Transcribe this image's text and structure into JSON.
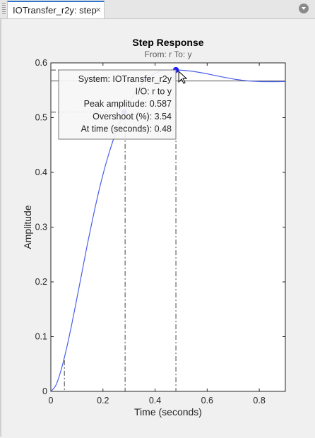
{
  "tab": {
    "label": "IOTransfer_r2y: step",
    "close": "×"
  },
  "chart_data": {
    "type": "line",
    "title": "Step Response",
    "subtitle": "From: r  To: y",
    "xlabel": "Time (seconds)",
    "ylabel": "Amplitude",
    "xlim": [
      0,
      0.9
    ],
    "ylim": [
      0,
      0.6
    ],
    "xticks": [
      0,
      0.2,
      0.4,
      0.6,
      0.8
    ],
    "yticks": [
      0,
      0.1,
      0.2,
      0.3,
      0.4,
      0.5,
      0.6
    ],
    "xtick_labels": [
      "0",
      "0.2",
      "0.4",
      "0.6",
      "0.8"
    ],
    "ytick_labels": [
      "0",
      "0.1",
      "0.2",
      "0.3",
      "0.4",
      "0.5",
      "0.6"
    ],
    "grid": false,
    "series": [
      {
        "color": "#4a5ee8",
        "x": [
          0,
          0.02,
          0.04,
          0.06,
          0.08,
          0.1,
          0.12,
          0.14,
          0.16,
          0.18,
          0.2,
          0.22,
          0.24,
          0.26,
          0.28,
          0.3,
          0.32,
          0.34,
          0.36,
          0.38,
          0.4,
          0.42,
          0.44,
          0.46,
          0.48,
          0.5,
          0.52,
          0.54,
          0.56,
          0.58,
          0.6,
          0.62,
          0.64,
          0.66,
          0.68,
          0.7,
          0.72,
          0.74,
          0.76,
          0.78,
          0.8,
          0.82,
          0.84,
          0.86,
          0.88,
          0.9
        ],
        "y": [
          0,
          0.012,
          0.04,
          0.078,
          0.122,
          0.17,
          0.219,
          0.268,
          0.314,
          0.357,
          0.396,
          0.43,
          0.46,
          0.486,
          0.508,
          0.527,
          0.543,
          0.556,
          0.567,
          0.575,
          0.581,
          0.585,
          0.5865,
          0.587,
          0.587,
          0.5866,
          0.5858,
          0.5848,
          0.5834,
          0.5818,
          0.58,
          0.578,
          0.576,
          0.5741,
          0.5723,
          0.5706,
          0.5692,
          0.568,
          0.567,
          0.5664,
          0.566,
          0.5658,
          0.5657,
          0.5657,
          0.5658,
          0.566
        ]
      }
    ],
    "steady_state": 0.567,
    "markers": {
      "rise_start": {
        "x": 0.052,
        "y": 0.057
      },
      "rise_end": {
        "x": 0.285,
        "y": 0.51
      },
      "peak": {
        "x": 0.48,
        "y": 0.587
      }
    },
    "datatip": {
      "system": "System:  IOTransfer_r2y",
      "io": "I/O:  r  to  y",
      "peak": "Peak  amplitude:  0.587",
      "overshoot": "Overshoot  (%):  3.54",
      "time": "At  time  (seconds):  0.48"
    }
  }
}
